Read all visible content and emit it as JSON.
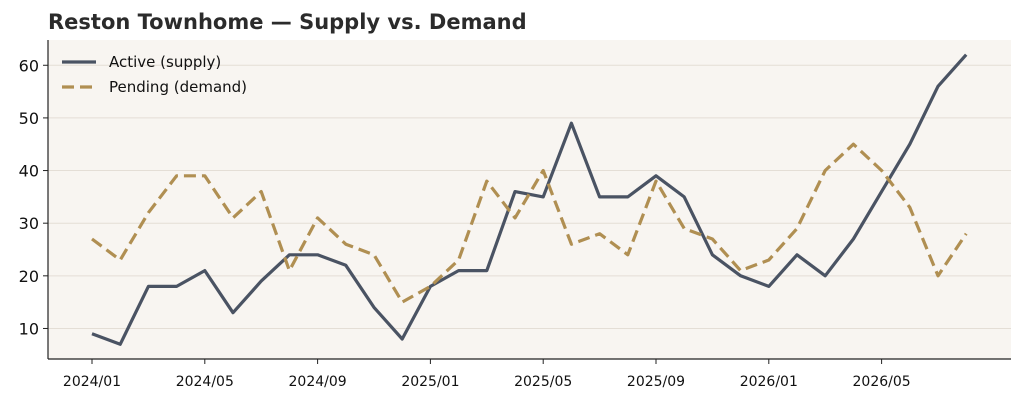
{
  "chart_data": {
    "type": "line",
    "title": "Reston Townhome — Supply vs. Demand",
    "xlabel": "",
    "ylabel": "",
    "x": [
      "2024/01",
      "2024/02",
      "2024/03",
      "2024/04",
      "2024/05",
      "2024/06",
      "2024/07",
      "2024/08",
      "2024/09",
      "2024/10",
      "2024/11",
      "2024/12",
      "2025/01",
      "2025/02",
      "2025/03",
      "2025/04",
      "2025/05",
      "2025/06",
      "2025/07",
      "2025/08",
      "2025/09",
      "2025/10",
      "2025/11",
      "2025/12",
      "2026/01",
      "2026/02",
      "2026/03",
      "2026/04",
      "2026/05",
      "2026/06",
      "2026/07",
      "2026/08"
    ],
    "xticks": [
      "2024/01",
      "2024/05",
      "2024/09",
      "2025/01",
      "2025/05",
      "2025/09",
      "2026/01",
      "2026/05"
    ],
    "yticks": [
      10,
      20,
      30,
      40,
      50,
      60
    ],
    "ylim": [
      4.2,
      64.8
    ],
    "grid": true,
    "legend": "top-left",
    "colors": {
      "background": "#f8f5f1",
      "grid": "#e4ded6",
      "axis": "#222222"
    },
    "series": [
      {
        "name": "Active (supply)",
        "color": "#4a5363",
        "style": "solid",
        "values": [
          9,
          7,
          18,
          18,
          21,
          13,
          19,
          24,
          24,
          22,
          14,
          8,
          18,
          21,
          21,
          36,
          35,
          49,
          35,
          35,
          39,
          35,
          24,
          20,
          18,
          24,
          20,
          27,
          36,
          45,
          56,
          62
        ]
      },
      {
        "name": "Pending (demand)",
        "color": "#b08f52",
        "style": "dashed",
        "values": [
          27,
          23,
          32,
          39,
          39,
          31,
          36,
          21,
          31,
          26,
          24,
          15,
          18,
          23,
          38,
          31,
          40,
          26,
          28,
          24,
          38,
          29,
          27,
          21,
          23,
          29,
          40,
          45,
          40,
          33,
          20,
          28
        ]
      }
    ]
  }
}
